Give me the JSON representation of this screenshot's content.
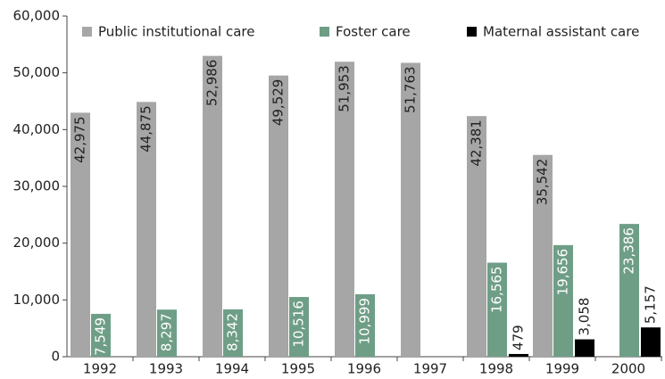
{
  "chart_data": {
    "type": "bar",
    "categories": [
      "1992",
      "1993",
      "1994",
      "1995",
      "1996",
      "1997",
      "1998",
      "1999",
      "2000"
    ],
    "series": [
      {
        "name": "Public institutional care",
        "color": "#a6a6a6",
        "values": [
          42975,
          44875,
          52986,
          49529,
          51953,
          51763,
          42381,
          35542,
          null
        ],
        "value_labels": [
          "42,975",
          "44,875",
          "52,986",
          "49,529",
          "51,953",
          "51,763",
          "42,381",
          "35,542",
          null
        ]
      },
      {
        "name": "Foster care",
        "color": "#6f9e87",
        "values": [
          7549,
          8297,
          8342,
          10516,
          10999,
          null,
          16565,
          19656,
          23386
        ],
        "value_labels": [
          "7,549",
          "8,297",
          "8,342",
          "10,516",
          "10,999",
          null,
          "16,565",
          "19,656",
          "23,386"
        ]
      },
      {
        "name": "Maternal assistant care",
        "color": "#000000",
        "values": [
          null,
          null,
          null,
          null,
          null,
          null,
          479,
          3058,
          5157
        ],
        "value_labels": [
          null,
          null,
          null,
          null,
          null,
          null,
          "479",
          "3,058",
          "5,157"
        ]
      }
    ],
    "ylim": [
      0,
      60000
    ],
    "yticks": [
      0,
      {
        "value": 10000,
        "label": "10,000"
      },
      {
        "value": 20000,
        "label": "20,000"
      },
      {
        "value": 30000,
        "label": "30,000"
      },
      {
        "value": 40000,
        "label": "40,000"
      },
      {
        "value": 50000,
        "label": "50,000"
      },
      {
        "value": 60000,
        "label": "60,000"
      }
    ],
    "legend": "top"
  }
}
